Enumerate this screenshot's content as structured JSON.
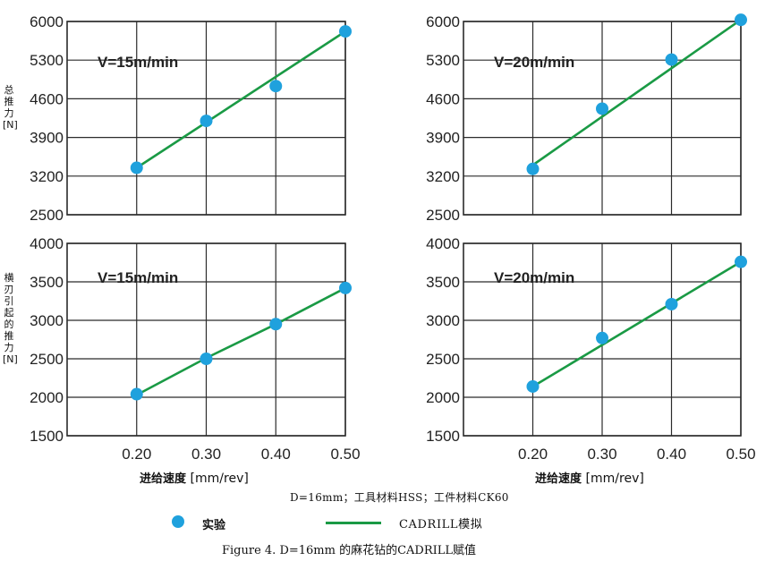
{
  "ylabel_top": "总推力[N]",
  "ylabel_bottom": "横刃引起的推力[N]",
  "xlabel_text": "进给速度",
  "xlabel_unit": "[mm/rev]",
  "condition_text": "D=16mm；工具材料HSS；工件材料CK60",
  "legend": {
    "experiment_label": "实验",
    "simulation_label": "CADRILL模拟"
  },
  "caption": "Figure 4. D=16mm 的麻花钻的CADRILL赋值",
  "colors": {
    "marker": "#1fa1dd",
    "line": "#1a9a45",
    "grid": "#2b2b2b"
  },
  "chart_data": [
    {
      "type": "line",
      "annotation": "V=15m/min",
      "x": [
        0.2,
        0.3,
        0.4,
        0.5
      ],
      "xticks": [
        "0.20",
        "0.30",
        "0.40",
        "0.50"
      ],
      "ylim": [
        2500,
        6000
      ],
      "yticks": [
        "6000",
        "5300",
        "4600",
        "3900",
        "3200",
        "2500"
      ],
      "experiment": [
        3350,
        4200,
        4830,
        5820
      ],
      "simulation_line": [
        [
          0.2,
          3350
        ],
        [
          0.5,
          5820
        ]
      ],
      "grid": true
    },
    {
      "type": "line",
      "annotation": "V=20m/min",
      "x": [
        0.2,
        0.3,
        0.4,
        0.5
      ],
      "xticks": [
        "0.20",
        "0.30",
        "0.40",
        "0.50"
      ],
      "ylim": [
        2500,
        6000
      ],
      "yticks": [
        "6000",
        "5300",
        "4600",
        "3900",
        "3200",
        "2500"
      ],
      "experiment": [
        3330,
        4420,
        5310,
        6030
      ],
      "simulation_line": [
        [
          0.2,
          3400
        ],
        [
          0.5,
          6030
        ]
      ],
      "grid": true
    },
    {
      "type": "line",
      "annotation": "V=15m/min",
      "x": [
        0.2,
        0.3,
        0.4,
        0.5
      ],
      "xticks": [
        "0.20",
        "0.30",
        "0.40",
        "0.50"
      ],
      "ylim": [
        1500,
        4000
      ],
      "yticks": [
        "4000",
        "3500",
        "3000",
        "2500",
        "2000",
        "1500"
      ],
      "experiment": [
        2040,
        2500,
        2950,
        3420
      ],
      "simulation_line": [
        [
          0.2,
          2030
        ],
        [
          0.3,
          2510
        ],
        [
          0.4,
          2950
        ],
        [
          0.5,
          3420
        ]
      ],
      "grid": true
    },
    {
      "type": "line",
      "annotation": "V=20m/min",
      "x": [
        0.2,
        0.3,
        0.4,
        0.5
      ],
      "xticks": [
        "0.20",
        "0.30",
        "0.40",
        "0.50"
      ],
      "ylim": [
        1500,
        4000
      ],
      "yticks": [
        "4000",
        "3500",
        "3000",
        "2500",
        "2000",
        "1500"
      ],
      "experiment": [
        2140,
        2770,
        3210,
        3760
      ],
      "simulation_line": [
        [
          0.2,
          2140
        ],
        [
          0.5,
          3760
        ]
      ],
      "grid": true
    }
  ]
}
